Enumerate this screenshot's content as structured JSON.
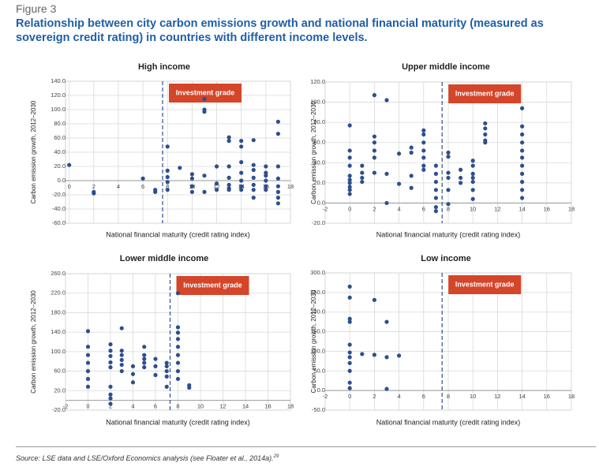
{
  "figure_label": "Figure 3",
  "heading": "Relationship between city carbon emissions growth and national financial maturity (measured as sovereign credit rating) in countries with different income levels.",
  "source": "Source: LSE data and LSE/Oxford Economics analysis (see Floater et al., 2014a).",
  "source_note": "29",
  "chart_data": [
    {
      "type": "scatter",
      "title": "High income",
      "xlabel": "National financial maturity (credit rating index)",
      "ylabel": "Carbon emission growth, 2012–2030",
      "annotation": "Investment grade",
      "threshold": 7.6,
      "color": "#2d4f8e",
      "x": [
        0,
        2,
        2,
        6,
        7,
        7,
        8,
        8,
        8,
        8,
        8,
        9,
        10,
        10,
        10,
        10,
        11,
        11,
        11,
        11,
        11,
        12,
        12,
        12,
        13,
        13,
        13,
        13,
        13,
        13,
        13,
        14,
        14,
        14,
        14,
        14,
        14,
        14,
        15,
        15,
        15,
        15,
        15,
        15,
        15,
        16,
        16,
        16,
        16,
        16,
        16,
        17,
        17,
        17,
        17,
        17,
        17,
        17,
        17
      ],
      "y": [
        22,
        -16,
        -18,
        3,
        -13,
        -16,
        48,
        14,
        5,
        -2,
        -13,
        18,
        9,
        3,
        -8,
        -16,
        115,
        100,
        97,
        7,
        -16,
        20,
        -4,
        -13,
        61,
        56,
        20,
        4,
        -6,
        -11,
        -13,
        56,
        48,
        26,
        11,
        0,
        -8,
        -13,
        57,
        22,
        15,
        4,
        -6,
        -13,
        -24,
        20,
        11,
        7,
        0,
        -8,
        -13,
        83,
        66,
        20,
        3,
        -8,
        -16,
        -24,
        -32
      ],
      "xlim": [
        -0.3,
        18
      ],
      "xticks": [
        0,
        2,
        4,
        6,
        8,
        10,
        12,
        14,
        16,
        18
      ],
      "ylim": [
        -60,
        140
      ],
      "yticks": [
        {
          "value": -60,
          "label": "-60.0"
        },
        {
          "value": -40,
          "label": "-40.0"
        },
        {
          "value": -20,
          "label": "-20.0"
        },
        {
          "value": 0,
          "label": "0.0"
        },
        {
          "value": 20,
          "label": "20.0"
        },
        {
          "value": 40,
          "label": "40.0"
        },
        {
          "value": 60,
          "label": "60.0"
        },
        {
          "value": 80,
          "label": "80.0"
        },
        {
          "value": 100,
          "label": "100.0"
        },
        {
          "value": 120,
          "label": "120.0"
        },
        {
          "value": 140,
          "label": "140.0"
        }
      ],
      "grid": true
    },
    {
      "type": "scatter",
      "title": "Upper middle income",
      "xlabel": "National financial maturity (credit rating index)",
      "ylabel": "Carbon emission growth, 2012–2030",
      "annotation": "Investment grade",
      "threshold": 7.5,
      "color": "#2d4f8e",
      "x": [
        0,
        0,
        0,
        0,
        0,
        0,
        0,
        0,
        0,
        0,
        1,
        1,
        1,
        1,
        2,
        2,
        2,
        2,
        2,
        2,
        3,
        3,
        3,
        4,
        4,
        5,
        5,
        5,
        5,
        6,
        6,
        6,
        6,
        6,
        6,
        6,
        7,
        7,
        7,
        7,
        7,
        7,
        7,
        8,
        8,
        8,
        8,
        8,
        8,
        9,
        9,
        9,
        10,
        10,
        10,
        10,
        10,
        10,
        10,
        11,
        11,
        11,
        11,
        11,
        14,
        14,
        14,
        14,
        14,
        14,
        14,
        14,
        14,
        14,
        14
      ],
      "y": [
        77,
        52,
        45,
        37,
        27,
        23,
        20,
        16,
        13,
        9,
        37,
        30,
        25,
        21,
        107,
        66,
        60,
        52,
        45,
        30,
        102,
        29,
        0,
        49,
        19,
        55,
        50,
        27,
        15,
        72,
        68,
        60,
        52,
        45,
        37,
        33,
        37,
        29,
        21,
        13,
        5,
        -4,
        -8,
        50,
        46,
        30,
        25,
        13,
        -1,
        33,
        25,
        20,
        42,
        37,
        29,
        25,
        21,
        13,
        4,
        79,
        74,
        68,
        62,
        60,
        94,
        76,
        68,
        60,
        52,
        45,
        37,
        29,
        21,
        13,
        5
      ],
      "xlim": [
        -2,
        18
      ],
      "xticks": [
        -2,
        0,
        2,
        4,
        6,
        8,
        10,
        12,
        14,
        16,
        18
      ],
      "ylim": [
        -20,
        120
      ],
      "yticks": [
        {
          "value": -20,
          "label": "-20.0"
        },
        {
          "value": 0,
          "label": "0.0"
        },
        {
          "value": 20,
          "label": "20.0"
        },
        {
          "value": 40,
          "label": "40.0"
        },
        {
          "value": 60,
          "label": "60.0"
        },
        {
          "value": 80,
          "label": "80.0"
        },
        {
          "value": 100,
          "label": "100.0"
        },
        {
          "value": 120,
          "label": "120.0"
        }
      ],
      "grid": true
    },
    {
      "type": "scatter",
      "title": "Lower middle income",
      "xlabel": "National financial maturity (credit rating index)",
      "ylabel": "Carbon emission growth, 2012–2030",
      "annotation": "Investment grade",
      "threshold": 7.3,
      "color": "#2d4f8e",
      "x": [
        0,
        0,
        0,
        0,
        0,
        0,
        0,
        2,
        2,
        2,
        2,
        2,
        2,
        2,
        2,
        2,
        3,
        3,
        3,
        3,
        3,
        3,
        4,
        4,
        4,
        5,
        5,
        5,
        5,
        5,
        6,
        6,
        6,
        7,
        7,
        7,
        7,
        7,
        8,
        8,
        8,
        8,
        8,
        8,
        8,
        8,
        8,
        9,
        9
      ],
      "y": [
        142,
        110,
        93,
        77,
        60,
        44,
        28,
        115,
        102,
        91,
        78,
        68,
        28,
        12,
        4,
        -7,
        148,
        102,
        93,
        83,
        73,
        60,
        70,
        54,
        37,
        110,
        93,
        85,
        77,
        68,
        85,
        70,
        52,
        77,
        70,
        60,
        49,
        28,
        220,
        150,
        139,
        126,
        110,
        93,
        77,
        60,
        44,
        31,
        26
      ],
      "xlim": [
        -2,
        18
      ],
      "xticks": [
        -2,
        0,
        2,
        4,
        6,
        8,
        10,
        12,
        14,
        16,
        18
      ],
      "ylim": [
        -20,
        260
      ],
      "yticks": [
        {
          "value": -20,
          "label": "-20.0"
        },
        {
          "value": 20,
          "label": "20.0"
        },
        {
          "value": 60,
          "label": "60.0"
        },
        {
          "value": 100,
          "label": "100.0"
        },
        {
          "value": 140,
          "label": "140.0"
        },
        {
          "value": 180,
          "label": "180.0"
        },
        {
          "value": 220,
          "label": "220.0"
        },
        {
          "value": 260,
          "label": "260.0"
        }
      ],
      "grid": true
    },
    {
      "type": "scatter",
      "title": "Low income",
      "xlabel": "National financial maturity (credit rating index)",
      "ylabel": "Carbon emission growth, 2012–2030",
      "annotation": "Investment grade",
      "threshold": 7.5,
      "color": "#2d4f8e",
      "x": [
        0,
        0,
        0,
        0,
        0,
        0,
        0,
        0,
        0,
        0,
        0,
        1,
        2,
        2,
        3,
        3,
        3,
        4
      ],
      "y": [
        265,
        237,
        183,
        175,
        117,
        97,
        85,
        70,
        50,
        20,
        6,
        93,
        231,
        91,
        175,
        85,
        4,
        89
      ],
      "xlim": [
        -2,
        18
      ],
      "xticks": [
        -2,
        0,
        2,
        4,
        6,
        8,
        10,
        12,
        14,
        16,
        18
      ],
      "ylim": [
        -50,
        300
      ],
      "yticks": [
        {
          "value": -50,
          "label": "-50.0"
        },
        {
          "value": 0,
          "label": "0.0"
        },
        {
          "value": 50,
          "label": "50.0"
        },
        {
          "value": 100,
          "label": "100.0"
        },
        {
          "value": 150,
          "label": "150.0"
        },
        {
          "value": 200,
          "label": "200.0"
        },
        {
          "value": 250,
          "label": "250.0"
        },
        {
          "value": 300,
          "label": "300.0"
        }
      ],
      "grid": true
    }
  ]
}
